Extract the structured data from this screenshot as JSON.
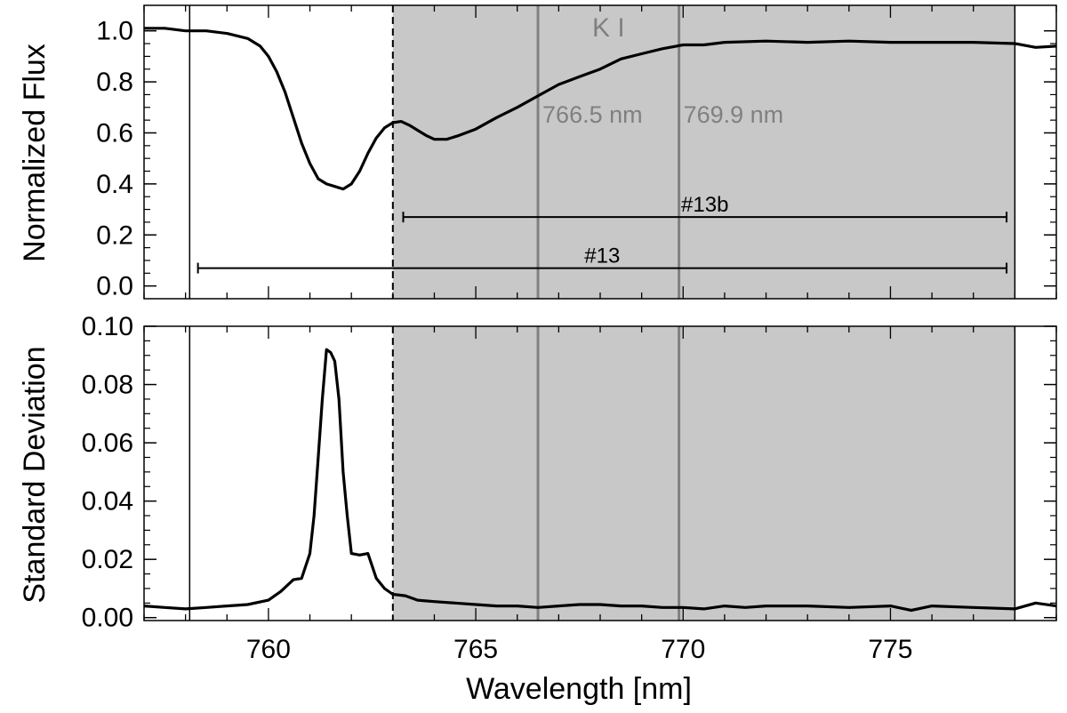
{
  "chart_data": [
    {
      "type": "line",
      "panel": "top",
      "ylabel": "Normalized Flux",
      "xlim": [
        757,
        779
      ],
      "ylim": [
        -0.05,
        1.1
      ],
      "yticks": [
        0.0,
        0.2,
        0.4,
        0.6,
        0.8,
        1.0
      ],
      "ytick_labels": [
        "0.0",
        "0.2",
        "0.4",
        "0.6",
        "0.8",
        "1.0"
      ],
      "shaded_band": [
        763.0,
        778.0
      ],
      "region_lines": [
        758.1,
        778.0
      ],
      "dashed_line": 763.0,
      "line_label": "K I",
      "lines": [
        {
          "x": 766.5,
          "label": "766.5 nm"
        },
        {
          "x": 769.9,
          "label": "769.9 nm"
        }
      ],
      "ranges": [
        {
          "label": "#13b",
          "x0": 763.25,
          "x1": 777.8,
          "y": 0.27
        },
        {
          "label": "#13",
          "x0": 758.3,
          "x1": 777.8,
          "y": 0.07
        }
      ],
      "series": [
        {
          "name": "mean",
          "x": [
            757.0,
            757.5,
            758.0,
            758.5,
            759.0,
            759.5,
            759.8,
            760.0,
            760.2,
            760.4,
            760.6,
            760.8,
            761.0,
            761.2,
            761.4,
            761.6,
            761.8,
            762.0,
            762.2,
            762.4,
            762.6,
            762.8,
            763.0,
            763.2,
            763.4,
            763.6,
            763.8,
            764.0,
            764.3,
            764.6,
            765.0,
            765.5,
            766.0,
            766.5,
            767.0,
            767.5,
            768.0,
            768.5,
            769.0,
            769.5,
            770.0,
            770.5,
            771.0,
            772.0,
            773.0,
            774.0,
            775.0,
            776.0,
            777.0,
            778.0,
            778.5,
            779.0
          ],
          "values": [
            1.01,
            1.01,
            1.0,
            1.0,
            0.99,
            0.97,
            0.94,
            0.9,
            0.84,
            0.76,
            0.66,
            0.56,
            0.48,
            0.42,
            0.4,
            0.39,
            0.38,
            0.4,
            0.45,
            0.52,
            0.58,
            0.62,
            0.64,
            0.645,
            0.63,
            0.61,
            0.59,
            0.575,
            0.575,
            0.59,
            0.615,
            0.66,
            0.7,
            0.745,
            0.79,
            0.82,
            0.85,
            0.89,
            0.91,
            0.93,
            0.945,
            0.945,
            0.955,
            0.96,
            0.955,
            0.96,
            0.955,
            0.955,
            0.955,
            0.95,
            0.935,
            0.94
          ]
        }
      ]
    },
    {
      "type": "line",
      "panel": "bottom",
      "ylabel": "Standard Deviation",
      "xlabel": "Wavelength [nm]",
      "xlim": [
        757,
        779
      ],
      "ylim": [
        -0.001,
        0.1
      ],
      "xticks": [
        760,
        765,
        770,
        775
      ],
      "xtick_labels": [
        "760",
        "765",
        "770",
        "775"
      ],
      "yticks": [
        0.0,
        0.02,
        0.04,
        0.06,
        0.08,
        0.1
      ],
      "ytick_labels": [
        "0.00",
        "0.02",
        "0.04",
        "0.06",
        "0.08",
        "0.10"
      ],
      "shaded_band": [
        763.0,
        778.0
      ],
      "region_lines": [
        758.1,
        778.0
      ],
      "dashed_line": 763.0,
      "lines": [
        {
          "x": 766.5
        },
        {
          "x": 769.9
        }
      ],
      "series": [
        {
          "name": "std",
          "x": [
            757.0,
            757.5,
            758.0,
            758.5,
            759.0,
            759.5,
            760.0,
            760.3,
            760.6,
            760.8,
            761.0,
            761.1,
            761.2,
            761.3,
            761.4,
            761.5,
            761.6,
            761.7,
            761.8,
            761.9,
            762.0,
            762.2,
            762.4,
            762.6,
            762.8,
            763.0,
            763.3,
            763.6,
            764.0,
            764.5,
            765.0,
            765.5,
            766.0,
            766.5,
            767.0,
            767.5,
            768.0,
            768.5,
            769.0,
            769.5,
            770.0,
            770.5,
            771.0,
            771.5,
            772.0,
            773.0,
            774.0,
            775.0,
            775.5,
            776.0,
            777.0,
            778.0,
            778.5,
            779.0
          ],
          "values": [
            0.004,
            0.0035,
            0.003,
            0.0035,
            0.004,
            0.0045,
            0.006,
            0.009,
            0.013,
            0.0135,
            0.022,
            0.035,
            0.055,
            0.075,
            0.092,
            0.091,
            0.088,
            0.075,
            0.05,
            0.035,
            0.022,
            0.0215,
            0.022,
            0.0135,
            0.01,
            0.008,
            0.0075,
            0.006,
            0.0055,
            0.005,
            0.0045,
            0.004,
            0.004,
            0.0035,
            0.004,
            0.0045,
            0.0045,
            0.004,
            0.004,
            0.0035,
            0.0035,
            0.003,
            0.004,
            0.0035,
            0.004,
            0.004,
            0.0035,
            0.004,
            0.0025,
            0.004,
            0.0035,
            0.003,
            0.005,
            0.004
          ]
        }
      ]
    }
  ]
}
